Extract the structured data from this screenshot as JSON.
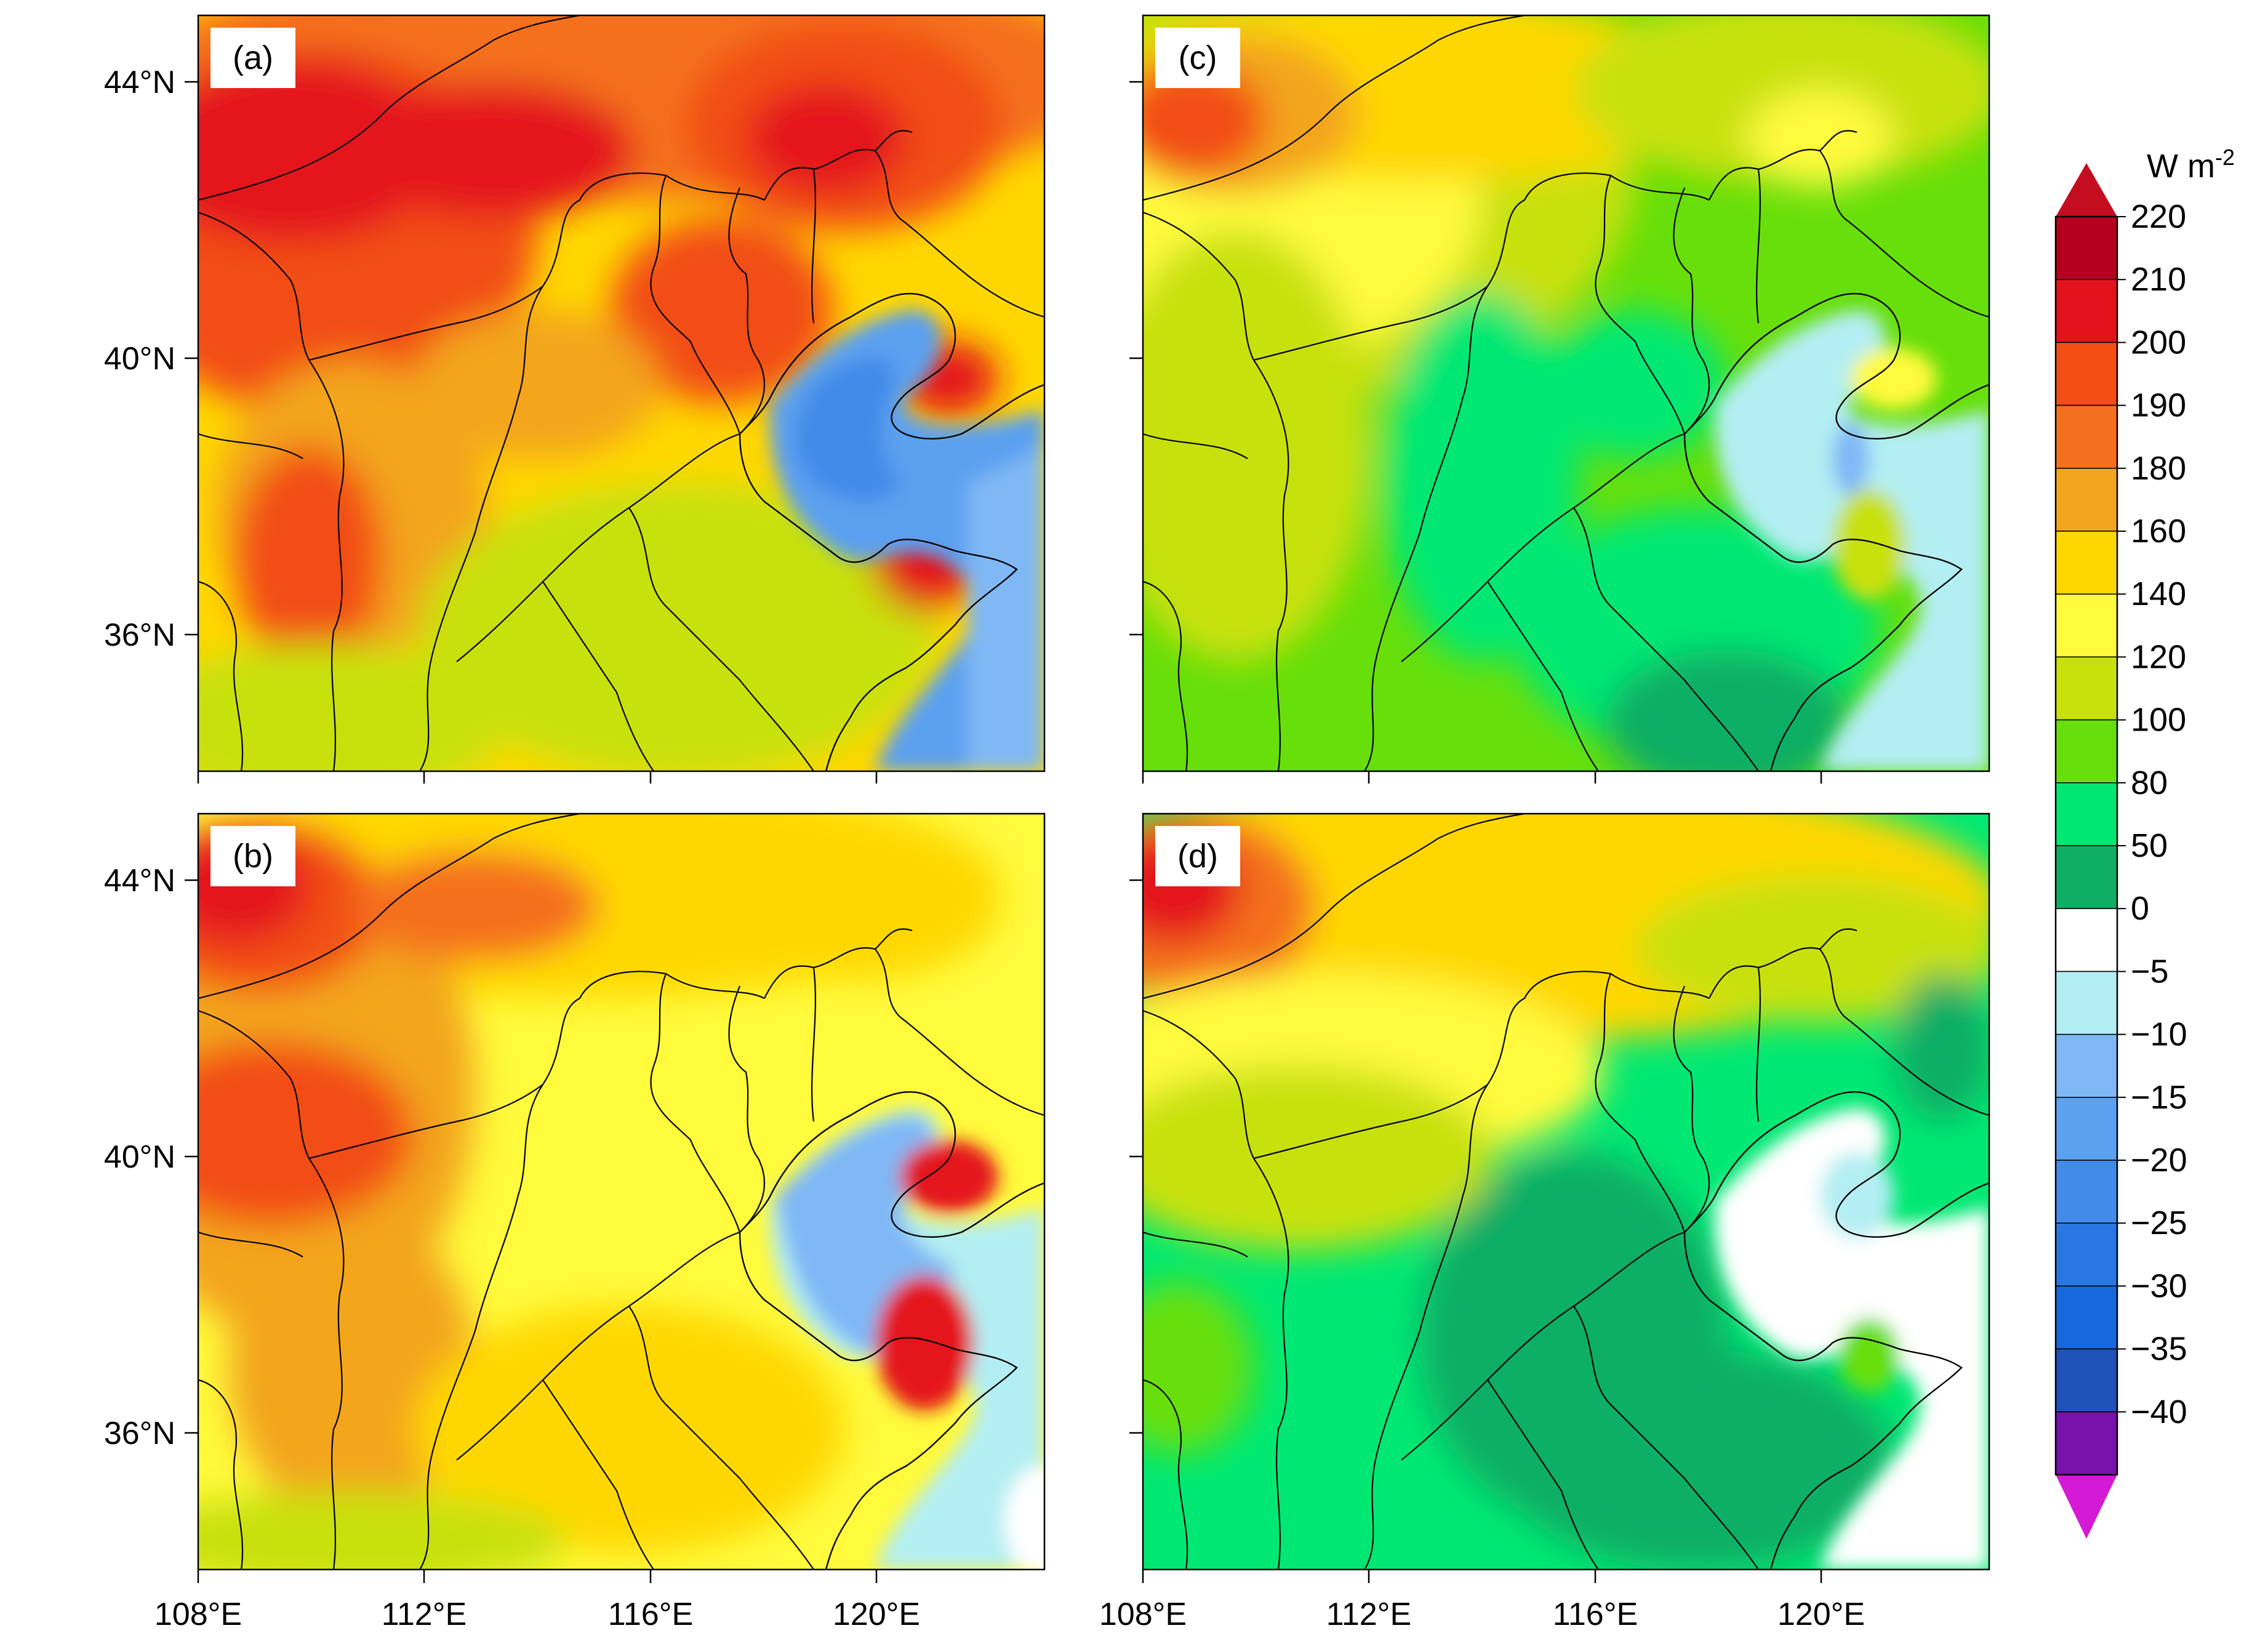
{
  "figure": {
    "panels": [
      {
        "id": "a",
        "label": "(a)",
        "style": "strong"
      },
      {
        "id": "c",
        "label": "(c)",
        "style": "weak"
      },
      {
        "id": "b",
        "label": "(b)",
        "style": "mid"
      },
      {
        "id": "d",
        "label": "(d)",
        "style": "weakest"
      }
    ],
    "lat_ticks": [
      "44°N",
      "40°N",
      "36°N"
    ],
    "lon_ticks": [
      "108°E",
      "112°E",
      "116°E",
      "120°E"
    ],
    "colorbar": {
      "unit_base": "W m",
      "unit_exp": "-2",
      "labels": [
        "220",
        "210",
        "200",
        "190",
        "180",
        "160",
        "140",
        "120",
        "100",
        "80",
        "50",
        "0",
        "−5",
        "−10",
        "−15",
        "−20",
        "−25",
        "−30",
        "−35",
        "−40"
      ],
      "colors": [
        "#b5001f",
        "#e4121c",
        "#f24d12",
        "#f46f1e",
        "#f3a51f",
        "#ffd700",
        "#fffa3c",
        "#c8e10a",
        "#67df0a",
        "#00e873",
        "#0fae65",
        "#ffffff",
        "#b3eef3",
        "#7fb8f5",
        "#5ca0f0",
        "#428be8",
        "#2a77e3",
        "#1767dd",
        "#1f52b8",
        "#7811aa"
      ],
      "top_arrow_color": "#c40d1e",
      "bottom_arrow_color": "#d41ad4"
    }
  }
}
